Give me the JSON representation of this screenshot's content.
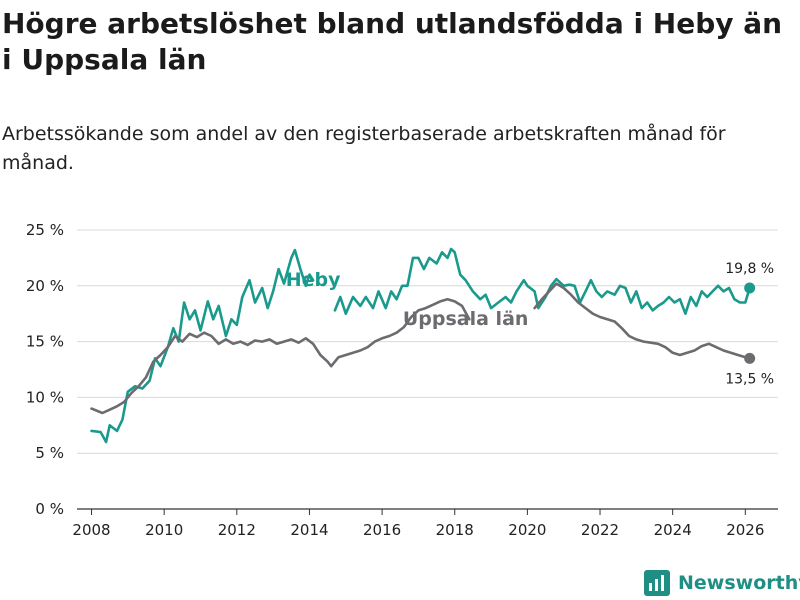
{
  "title": "Högre arbetslöshet bland utlandsfödda i Heby än i Uppsala län",
  "subtitle": "Arbetssökande som andel av den registerbaserade arbetskraften månad för månad.",
  "brand": "Newsworthy",
  "colors": {
    "heby": "#1a9a8c",
    "uppsala": "#6e6b70",
    "grid": "#d9d9d9",
    "brand": "#1f8f84"
  },
  "chart_data": {
    "type": "line",
    "title": "Högre arbetslöshet bland utlandsfödda i Heby än i Uppsala län",
    "xlabel": "",
    "ylabel": "",
    "xlim": [
      2007.6,
      2026.9
    ],
    "ylim": [
      0,
      25
    ],
    "x_ticks": [
      2008,
      2010,
      2012,
      2014,
      2016,
      2018,
      2020,
      2022,
      2024,
      2026
    ],
    "x_tick_labels": [
      "2008",
      "2010",
      "2012",
      "2014",
      "2016",
      "2018",
      "2020",
      "2022",
      "2024",
      "2026"
    ],
    "y_ticks": [
      0,
      5,
      10,
      15,
      20,
      25
    ],
    "y_tick_labels": [
      "0 %",
      "5 %",
      "10 %",
      "15 %",
      "20 %",
      "25 %"
    ],
    "grid": true,
    "series": [
      {
        "name": "Heby",
        "end_label": "19,8 %",
        "points": [
          [
            2008.0,
            7.0
          ],
          [
            2008.25,
            6.9
          ],
          [
            2008.4,
            6.0
          ],
          [
            2008.5,
            7.5
          ],
          [
            2008.7,
            7.0
          ],
          [
            2008.85,
            8.0
          ],
          [
            2009.0,
            10.5
          ],
          [
            2009.2,
            11.0
          ],
          [
            2009.4,
            10.8
          ],
          [
            2009.6,
            11.5
          ],
          [
            2009.75,
            13.5
          ],
          [
            2009.9,
            12.8
          ],
          [
            2010.1,
            14.5
          ],
          [
            2010.25,
            16.2
          ],
          [
            2010.4,
            15.0
          ],
          [
            2010.55,
            18.5
          ],
          [
            2010.7,
            17.0
          ],
          [
            2010.85,
            17.8
          ],
          [
            2011.0,
            16.0
          ],
          [
            2011.2,
            18.6
          ],
          [
            2011.35,
            17.0
          ],
          [
            2011.5,
            18.2
          ],
          [
            2011.7,
            15.5
          ],
          [
            2011.85,
            17.0
          ],
          [
            2012.0,
            16.5
          ],
          [
            2012.15,
            19.0
          ],
          [
            2012.35,
            20.5
          ],
          [
            2012.5,
            18.5
          ],
          [
            2012.7,
            19.8
          ],
          [
            2012.85,
            18.0
          ],
          [
            2013.0,
            19.5
          ],
          [
            2013.15,
            21.5
          ],
          [
            2013.3,
            20.2
          ],
          [
            2013.5,
            22.5
          ],
          [
            2013.6,
            23.2
          ],
          [
            2013.75,
            21.5
          ],
          [
            2013.9,
            20.0
          ],
          [
            2014.0,
            21.0
          ],
          [
            2014.1,
            20.5
          ],
          [
            2014.7,
            17.8
          ],
          [
            2014.85,
            19.0
          ],
          [
            2015.0,
            17.5
          ],
          [
            2015.2,
            19.0
          ],
          [
            2015.4,
            18.2
          ],
          [
            2015.55,
            19.0
          ],
          [
            2015.75,
            18.0
          ],
          [
            2015.9,
            19.5
          ],
          [
            2016.1,
            18.0
          ],
          [
            2016.25,
            19.5
          ],
          [
            2016.4,
            18.8
          ],
          [
            2016.55,
            20.0
          ],
          [
            2016.7,
            20.0
          ],
          [
            2016.85,
            22.5
          ],
          [
            2017.0,
            22.5
          ],
          [
            2017.15,
            21.5
          ],
          [
            2017.3,
            22.5
          ],
          [
            2017.5,
            22.0
          ],
          [
            2017.65,
            23.0
          ],
          [
            2017.8,
            22.5
          ],
          [
            2017.9,
            23.3
          ],
          [
            2018.0,
            23.0
          ],
          [
            2018.15,
            21.0
          ],
          [
            2018.3,
            20.5
          ],
          [
            2018.5,
            19.5
          ],
          [
            2018.7,
            18.8
          ],
          [
            2018.85,
            19.2
          ],
          [
            2019.0,
            18.0
          ],
          [
            2019.2,
            18.5
          ],
          [
            2019.4,
            19.0
          ],
          [
            2019.55,
            18.5
          ],
          [
            2019.7,
            19.5
          ],
          [
            2019.9,
            20.5
          ],
          [
            2020.0,
            20.0
          ],
          [
            2020.2,
            19.5
          ],
          [
            2020.3,
            18.0
          ],
          [
            2020.5,
            19.0
          ],
          [
            2020.65,
            20.0
          ],
          [
            2020.8,
            20.6
          ],
          [
            2021.0,
            20.0
          ],
          [
            2021.15,
            20.1
          ],
          [
            2021.3,
            20.0
          ],
          [
            2021.45,
            18.5
          ],
          [
            2021.6,
            19.5
          ],
          [
            2021.75,
            20.5
          ],
          [
            2021.9,
            19.5
          ],
          [
            2022.05,
            19.0
          ],
          [
            2022.2,
            19.5
          ],
          [
            2022.4,
            19.2
          ],
          [
            2022.55,
            20.0
          ],
          [
            2022.7,
            19.8
          ],
          [
            2022.85,
            18.5
          ],
          [
            2023.0,
            19.5
          ],
          [
            2023.15,
            18.0
          ],
          [
            2023.3,
            18.5
          ],
          [
            2023.45,
            17.8
          ],
          [
            2023.6,
            18.2
          ],
          [
            2023.75,
            18.5
          ],
          [
            2023.9,
            19.0
          ],
          [
            2024.05,
            18.5
          ],
          [
            2024.2,
            18.8
          ],
          [
            2024.35,
            17.5
          ],
          [
            2024.5,
            19.0
          ],
          [
            2024.65,
            18.2
          ],
          [
            2024.8,
            19.5
          ],
          [
            2024.95,
            19.0
          ],
          [
            2025.1,
            19.5
          ],
          [
            2025.25,
            20.0
          ],
          [
            2025.4,
            19.5
          ],
          [
            2025.55,
            19.8
          ],
          [
            2025.7,
            18.8
          ],
          [
            2025.85,
            18.5
          ],
          [
            2026.0,
            18.5
          ],
          [
            2026.12,
            19.8
          ]
        ]
      },
      {
        "name": "Uppsala län",
        "end_label": "13,5 %",
        "points": [
          [
            2008.0,
            9.0
          ],
          [
            2008.3,
            8.6
          ],
          [
            2008.5,
            8.9
          ],
          [
            2008.7,
            9.2
          ],
          [
            2008.9,
            9.6
          ],
          [
            2009.1,
            10.4
          ],
          [
            2009.3,
            11.0
          ],
          [
            2009.5,
            11.8
          ],
          [
            2009.7,
            13.2
          ],
          [
            2009.9,
            13.8
          ],
          [
            2010.1,
            14.5
          ],
          [
            2010.3,
            15.5
          ],
          [
            2010.5,
            15.0
          ],
          [
            2010.7,
            15.7
          ],
          [
            2010.9,
            15.4
          ],
          [
            2011.1,
            15.8
          ],
          [
            2011.3,
            15.5
          ],
          [
            2011.5,
            14.8
          ],
          [
            2011.7,
            15.2
          ],
          [
            2011.9,
            14.8
          ],
          [
            2012.1,
            15.0
          ],
          [
            2012.3,
            14.7
          ],
          [
            2012.5,
            15.1
          ],
          [
            2012.7,
            15.0
          ],
          [
            2012.9,
            15.2
          ],
          [
            2013.1,
            14.8
          ],
          [
            2013.3,
            15.0
          ],
          [
            2013.5,
            15.2
          ],
          [
            2013.7,
            14.9
          ],
          [
            2013.9,
            15.3
          ],
          [
            2014.1,
            14.8
          ],
          [
            2014.3,
            13.8
          ],
          [
            2014.5,
            13.2
          ],
          [
            2014.6,
            12.8
          ],
          [
            2014.8,
            13.6
          ],
          [
            2015.0,
            13.8
          ],
          [
            2015.2,
            14.0
          ],
          [
            2015.4,
            14.2
          ],
          [
            2015.6,
            14.5
          ],
          [
            2015.8,
            15.0
          ],
          [
            2016.0,
            15.3
          ],
          [
            2016.2,
            15.5
          ],
          [
            2016.4,
            15.8
          ],
          [
            2016.6,
            16.3
          ],
          [
            2016.8,
            17.2
          ],
          [
            2017.0,
            17.8
          ],
          [
            2017.2,
            18.0
          ],
          [
            2017.4,
            18.3
          ],
          [
            2017.6,
            18.6
          ],
          [
            2017.8,
            18.8
          ],
          [
            2018.0,
            18.6
          ],
          [
            2018.2,
            18.2
          ],
          [
            2018.4,
            17.0
          ],
          [
            2020.2,
            18.0
          ],
          [
            2020.4,
            18.8
          ],
          [
            2020.6,
            19.5
          ],
          [
            2020.8,
            20.2
          ],
          [
            2021.0,
            19.8
          ],
          [
            2021.2,
            19.2
          ],
          [
            2021.4,
            18.5
          ],
          [
            2021.6,
            18.0
          ],
          [
            2021.8,
            17.5
          ],
          [
            2022.0,
            17.2
          ],
          [
            2022.2,
            17.0
          ],
          [
            2022.4,
            16.8
          ],
          [
            2022.6,
            16.2
          ],
          [
            2022.8,
            15.5
          ],
          [
            2023.0,
            15.2
          ],
          [
            2023.2,
            15.0
          ],
          [
            2023.4,
            14.9
          ],
          [
            2023.6,
            14.8
          ],
          [
            2023.8,
            14.5
          ],
          [
            2024.0,
            14.0
          ],
          [
            2024.2,
            13.8
          ],
          [
            2024.4,
            14.0
          ],
          [
            2024.6,
            14.2
          ],
          [
            2024.8,
            14.6
          ],
          [
            2025.0,
            14.8
          ],
          [
            2025.2,
            14.5
          ],
          [
            2025.4,
            14.2
          ],
          [
            2025.6,
            14.0
          ],
          [
            2025.8,
            13.8
          ],
          [
            2026.0,
            13.6
          ],
          [
            2026.12,
            13.5
          ]
        ]
      }
    ],
    "line_labels": [
      {
        "series": "Heby",
        "text": "Heby",
        "x": 2014.1,
        "y": 20.0
      },
      {
        "series": "Uppsala län",
        "text": "Uppsala län",
        "x": 2018.3,
        "y": 16.5
      }
    ]
  }
}
